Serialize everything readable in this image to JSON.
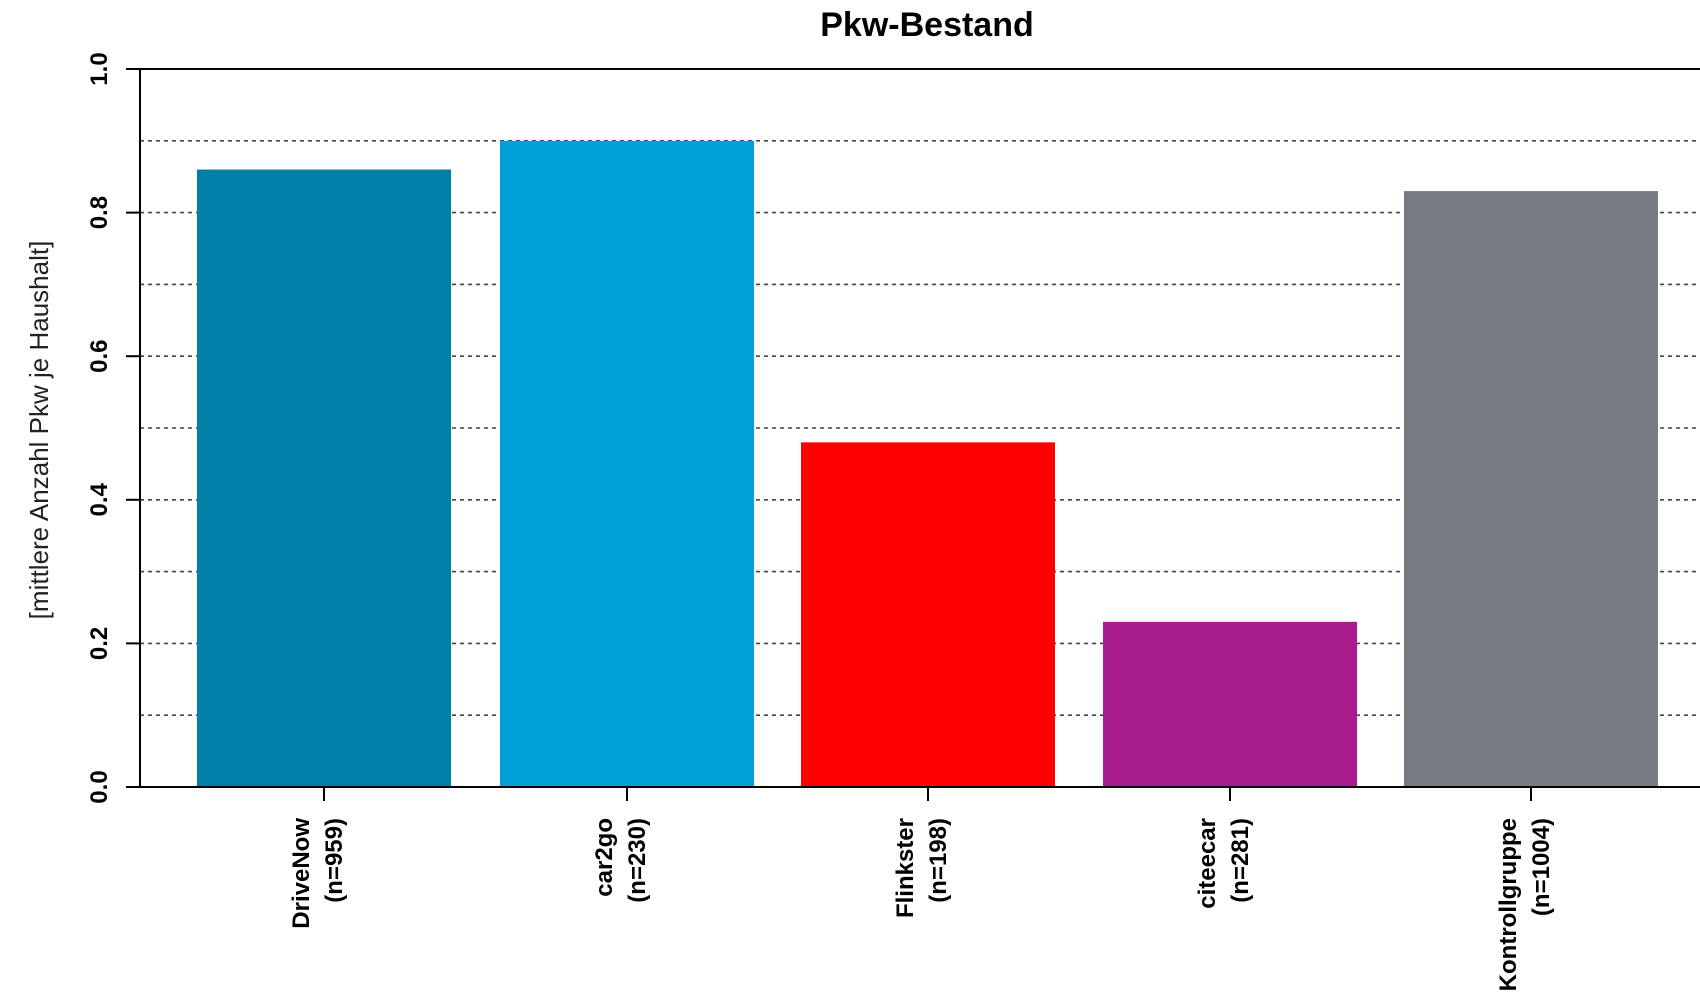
{
  "chart_data": {
    "type": "bar",
    "title": "Pkw-Bestand",
    "ylabel": "[mittlere Anzahl Pkw je Haushalt]",
    "xlabel": "",
    "ylim": [
      0,
      1.0
    ],
    "yticks": [
      "0.0",
      "0.2",
      "0.4",
      "0.6",
      "0.8",
      "1.0"
    ],
    "grid_values": [
      0.1,
      0.2,
      0.3,
      0.4,
      0.5,
      0.6,
      0.7,
      0.8,
      0.9
    ],
    "grid": true,
    "categories": [
      [
        "DriveNow",
        "(n=959)"
      ],
      [
        "car2go",
        "(n=230)"
      ],
      [
        "Flinkster",
        "(n=198)"
      ],
      [
        "citeecar",
        "(n=281)"
      ],
      [
        "Kontrollgruppe",
        "(n=1004)"
      ]
    ],
    "values": [
      0.86,
      0.9,
      0.48,
      0.23,
      0.83
    ],
    "colors": [
      "#0080A8",
      "#00A0D8",
      "#FF0000",
      "#A81C8C",
      "#767C82"
    ]
  }
}
